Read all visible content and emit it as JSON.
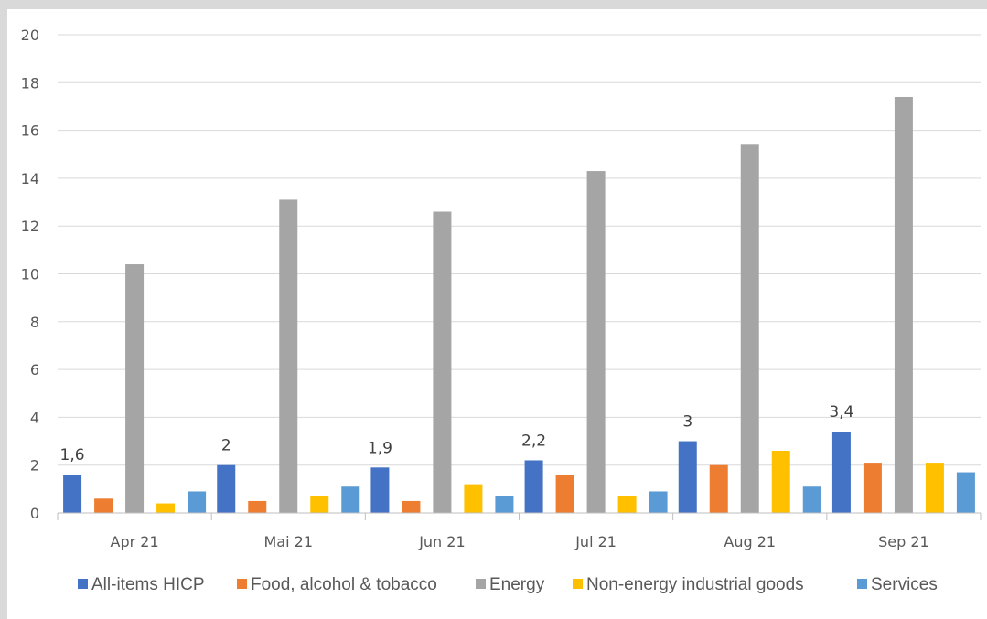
{
  "chart_data": {
    "type": "bar",
    "title": "",
    "xlabel": "",
    "ylabel": "",
    "ylim": [
      0,
      20
    ],
    "yticks": [
      "0",
      "2",
      "4",
      "6",
      "8",
      "10",
      "12",
      "14",
      "16",
      "18",
      "20"
    ],
    "categories": [
      "Apr 21",
      "Mai 21",
      "Jun 21",
      "Jul 21",
      "Aug 21",
      "Sep 21"
    ],
    "series": [
      {
        "name": "All-items HICP",
        "color": "#4472c4",
        "values": [
          1.6,
          2.0,
          1.9,
          2.2,
          3.0,
          3.4
        ]
      },
      {
        "name": "Food, alcohol & tobacco",
        "color": "#ed7d31",
        "values": [
          0.6,
          0.5,
          0.5,
          1.6,
          2.0,
          2.1
        ]
      },
      {
        "name": "Energy",
        "color": "#a5a5a5",
        "values": [
          10.4,
          13.1,
          12.6,
          14.3,
          15.4,
          17.4
        ]
      },
      {
        "name": "Non-energy industrial goods",
        "color": "#ffc000",
        "values": [
          0.4,
          0.7,
          1.2,
          0.7,
          2.6,
          2.1
        ]
      },
      {
        "name": "Services",
        "color": "#5b9bd5",
        "values": [
          0.9,
          1.1,
          0.7,
          0.9,
          1.1,
          1.7
        ]
      }
    ],
    "data_labels": {
      "series": "All-items HICP",
      "labels": [
        "1,6",
        "2",
        "1,9",
        "2,2",
        "3",
        "3,4"
      ]
    },
    "grid": true,
    "legend_position": "bottom"
  }
}
